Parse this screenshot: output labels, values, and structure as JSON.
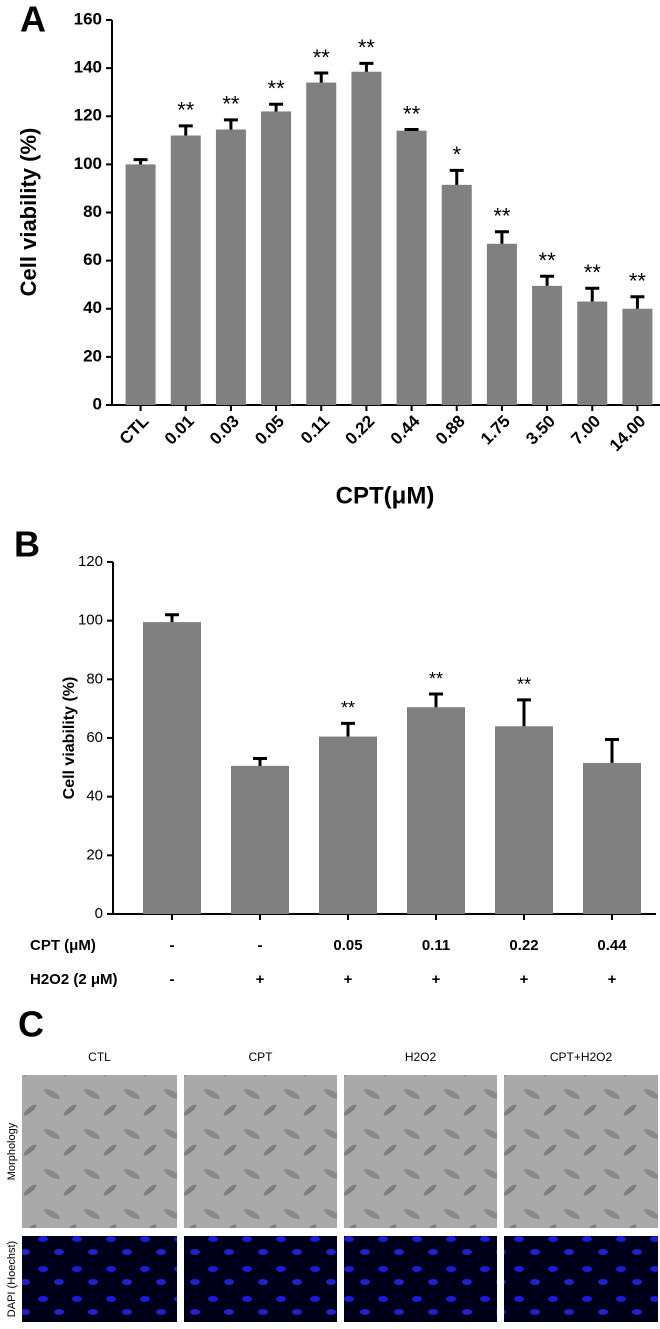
{
  "chart_data": [
    {
      "type": "bar",
      "panel": "A",
      "xlabel": "CPT(μM)",
      "ylabel": "Cell viability (%)",
      "categories": [
        "CTL",
        "0.01",
        "0.03",
        "0.05",
        "0.11",
        "0.22",
        "0.44",
        "0.88",
        "1.75",
        "3.50",
        "7.00",
        "14.00"
      ],
      "values": [
        100,
        112,
        114.5,
        122,
        134,
        138.5,
        114,
        91.5,
        67,
        49.5,
        43,
        40
      ],
      "errors": [
        2,
        4,
        4,
        3,
        4,
        3.5,
        0.5,
        6,
        5,
        4,
        5.5,
        5
      ],
      "annotations": [
        null,
        "**",
        "**",
        "**",
        "**",
        "**",
        "**",
        "*",
        "**",
        "**",
        "**",
        "**"
      ],
      "color": "#808080",
      "ylim": [
        0,
        160
      ],
      "yticks": [
        0,
        20,
        40,
        60,
        80,
        100,
        120,
        140,
        160
      ]
    },
    {
      "type": "bar",
      "panel": "B",
      "ylabel": "Cell viability (%)",
      "category_rows": [
        {
          "name": "CPT (μM)",
          "labels": [
            "-",
            "-",
            "0.05",
            "0.11",
            "0.22",
            "0.44"
          ]
        },
        {
          "name": "H2O2 (2 μM)",
          "labels": [
            "-",
            "+",
            "+",
            "+",
            "+",
            "+"
          ]
        }
      ],
      "values": [
        99.5,
        50.5,
        60.5,
        70.5,
        64,
        51.5
      ],
      "errors": [
        2.5,
        2.5,
        4.5,
        4.5,
        9,
        8
      ],
      "annotations": [
        null,
        null,
        "**",
        "**",
        "**",
        null
      ],
      "color": "#808080",
      "ylim": [
        0,
        120
      ],
      "yticks": [
        0,
        20,
        40,
        60,
        80,
        100,
        120
      ]
    }
  ],
  "panel_c": {
    "panel": "C",
    "columns": [
      "CTL",
      "CPT",
      "H2O2",
      "CPT+H2O2"
    ],
    "rows": [
      "Morphology",
      "DAPI (Hoechst)"
    ]
  }
}
